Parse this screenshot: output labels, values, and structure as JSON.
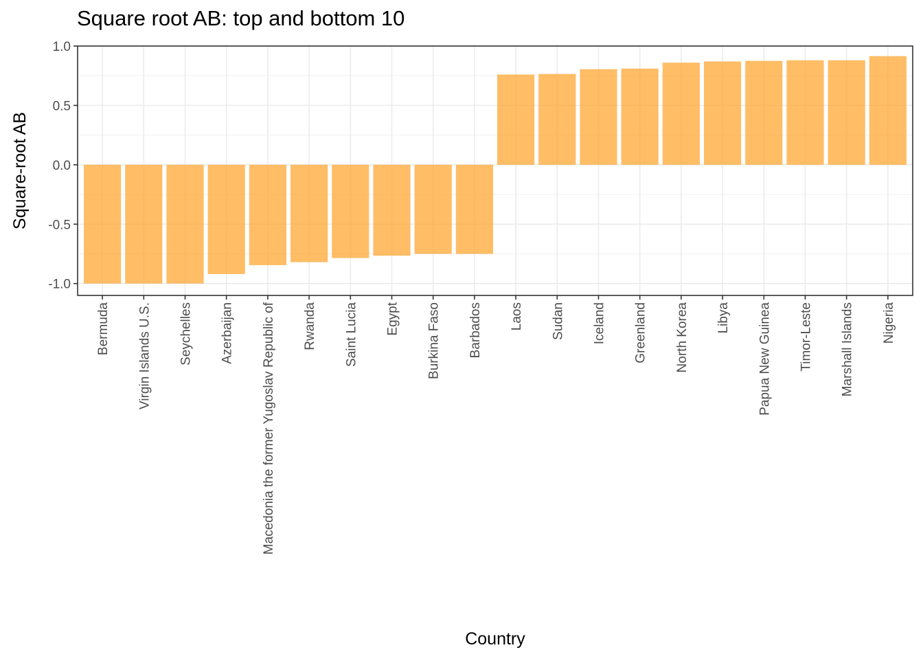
{
  "chart_data": {
    "type": "bar",
    "title": "Square root AB: top and bottom 10",
    "xlabel": "Country",
    "ylabel": "Square-root AB",
    "ylim": [
      -1.1,
      1.0
    ],
    "yticks": [
      1.0,
      0.5,
      0.0,
      -0.5,
      -1.0
    ],
    "ytick_labels": [
      "1.0",
      "0.5",
      "0.0",
      "-0.5",
      "-1.0"
    ],
    "grid": true,
    "bar_color": "#FFA733",
    "categories": [
      "Bermuda",
      "Virgin Islands U.S.",
      "Seychelles",
      "Azerbaijan",
      "Macedonia the former Yugoslav Republic of",
      "Rwanda",
      "Saint Lucia",
      "Egypt",
      "Burkina Faso",
      "Barbados",
      "Laos",
      "Sudan",
      "Iceland",
      "Greenland",
      "North Korea",
      "Libya",
      "Papua New Guinea",
      "Timor-Leste",
      "Marshall Islands",
      "Nigeria"
    ],
    "values": [
      -1.0,
      -1.0,
      -1.0,
      -0.92,
      -0.845,
      -0.82,
      -0.785,
      -0.765,
      -0.75,
      -0.75,
      0.76,
      0.765,
      0.805,
      0.81,
      0.86,
      0.87,
      0.875,
      0.88,
      0.88,
      0.915
    ]
  }
}
